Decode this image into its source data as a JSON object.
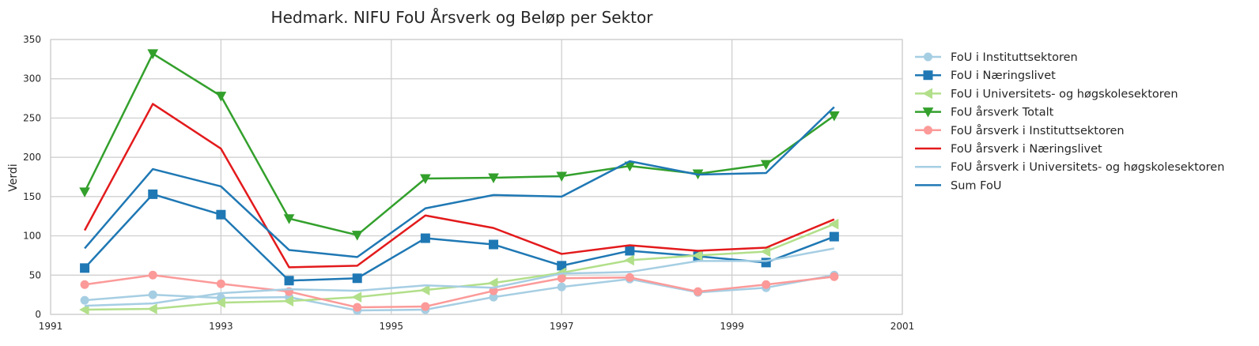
{
  "chart_data": {
    "type": "line",
    "title": "Hedmark. NIFU FoU Årsverk og Beløp per Sektor",
    "xlabel": "",
    "ylabel": "Verdi",
    "xlim": [
      1991,
      2001
    ],
    "ylim": [
      0,
      350
    ],
    "xticks": [
      "1991",
      "1993",
      "1995",
      "1997",
      "1999",
      "2001"
    ],
    "yticks": [
      "0",
      "50",
      "100",
      "150",
      "200",
      "250",
      "300",
      "350"
    ],
    "grid": true,
    "legend_position": "outside-right",
    "x": [
      1991.4,
      1992.2,
      1993.0,
      1993.8,
      1994.6,
      1995.4,
      1996.2,
      1997.0,
      1997.8,
      1998.6,
      1999.4,
      2000.2
    ],
    "series": [
      {
        "name": "FoU i Instituttsektoren",
        "color": "#a6cee3",
        "marker": "circle",
        "values": [
          18,
          25,
          21,
          22,
          5,
          6,
          22,
          35,
          45,
          28,
          34,
          50
        ]
      },
      {
        "name": "FoU i Næringslivet",
        "color": "#1f78b4",
        "marker": "square",
        "values": [
          59,
          153,
          127,
          43,
          46,
          97,
          89,
          62,
          81,
          74,
          66,
          99
        ]
      },
      {
        "name": "FoU i Universitets- og høgskolesektoren",
        "color": "#b2df8a",
        "marker": "triangle-left",
        "values": [
          6,
          7,
          15,
          17,
          22,
          31,
          40,
          53,
          69,
          75,
          80,
          115
        ]
      },
      {
        "name": "FoU årsverk Totalt",
        "color": "#33a02c",
        "marker": "triangle-down",
        "values": [
          156,
          332,
          278,
          122,
          101,
          173,
          174,
          176,
          189,
          179,
          191,
          253
        ]
      },
      {
        "name": "FoU årsverk i Instituttsektoren",
        "color": "#fb9a99",
        "marker": "circle",
        "values": [
          38,
          50,
          39,
          29,
          9,
          10,
          30,
          46,
          47,
          29,
          38,
          48
        ]
      },
      {
        "name": "FoU årsverk i Næringslivet",
        "color": "#e31a1c",
        "marker": "none",
        "values": [
          107,
          268,
          211,
          60,
          62,
          126,
          110,
          77,
          88,
          81,
          85,
          121
        ]
      },
      {
        "name": "FoU årsverk i Universitets- og høgskolesektoren",
        "color": "#a6cee3",
        "marker": "none",
        "values": [
          11,
          14,
          27,
          32,
          30,
          37,
          34,
          52,
          54,
          68,
          68,
          84
        ]
      },
      {
        "name": "Sum FoU",
        "color": "#1f78b4",
        "marker": "none",
        "values": [
          84,
          185,
          163,
          82,
          73,
          135,
          152,
          150,
          195,
          178,
          180,
          264
        ]
      }
    ]
  }
}
